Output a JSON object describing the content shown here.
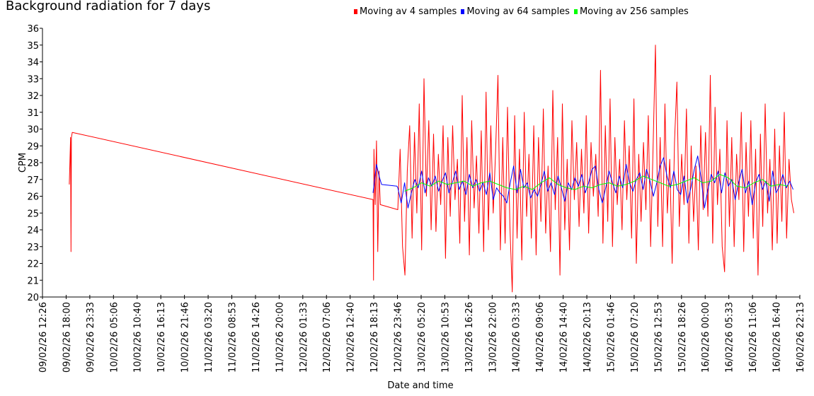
{
  "chart_data": {
    "type": "line",
    "title": "Background radiation for 7 days",
    "xlabel": "Date and time",
    "ylabel": "CPM",
    "ylim": [
      20,
      36
    ],
    "x_unit": "hours since 09/02/26 12:26",
    "xlim": [
      0,
      177.78
    ],
    "x_tick_step_hours": 5.5556,
    "yticks": [
      20,
      21,
      22,
      23,
      24,
      25,
      26,
      27,
      28,
      29,
      30,
      31,
      32,
      33,
      34,
      35,
      36
    ],
    "xtick_labels": [
      "09/02/26 12:26",
      "09/02/26 18:00",
      "09/02/26 23:33",
      "10/02/26 05:06",
      "10/02/26 10:40",
      "10/02/26 16:13",
      "10/02/26 21:46",
      "11/02/26 03:20",
      "11/02/26 08:53",
      "11/02/26 14:26",
      "11/02/26 20:00",
      "12/02/26 01:33",
      "12/02/26 07:06",
      "12/02/26 12:40",
      "12/02/26 18:13",
      "12/02/26 23:46",
      "13/02/26 05:20",
      "13/02/26 10:53",
      "13/02/26 16:26",
      "13/02/26 22:00",
      "14/02/26 03:33",
      "14/02/26 09:06",
      "14/02/26 14:40",
      "14/02/26 20:13",
      "15/02/26 01:46",
      "15/02/26 07:20",
      "15/02/26 12:53",
      "15/02/26 18:26",
      "16/02/26 00:00",
      "16/02/26 05:33",
      "16/02/26 11:06",
      "16/02/26 16:40",
      "16/02/26 22:13"
    ],
    "legend_position": "top",
    "series": [
      {
        "name": "Moving av 4 samples",
        "color": "#ff0000",
        "points": [
          [
            6.3,
            26.7
          ],
          [
            6.6,
            29.5
          ],
          [
            6.7,
            22.7
          ],
          [
            6.8,
            29.5
          ],
          [
            7.0,
            29.8
          ],
          [
            77.6,
            25.8
          ],
          [
            77.7,
            21
          ],
          [
            77.8,
            28.8
          ],
          [
            78.1,
            25.5
          ],
          [
            78.4,
            29.3
          ],
          [
            78.7,
            22.7
          ],
          [
            79.0,
            27.5
          ],
          [
            79.3,
            25.5
          ]
        ],
        "x_start": 83.4,
        "x_step": 0.56,
        "values": [
          25.2,
          28.8,
          23,
          21.3,
          27.5,
          30.2,
          23.5,
          29.8,
          25,
          31.5,
          22.8,
          33,
          26,
          30.5,
          24,
          29.7,
          23.9,
          28.5,
          25.5,
          30.2,
          22.3,
          29.5,
          24.8,
          30.2,
          25.8,
          28.2,
          23.2,
          32,
          24.5,
          29.5,
          22.5,
          30.5,
          25.3,
          28.4,
          23.8,
          29.9,
          22.7,
          32.2,
          24,
          30.2,
          25,
          28.6,
          33.2,
          22.8,
          29.5,
          23.2,
          31.3,
          24.2,
          20.3,
          30.8,
          23.5,
          28.8,
          22.2,
          31,
          24.8,
          28.5,
          23.5,
          30.2,
          22.5,
          29.5,
          24.5,
          31.2,
          23.8,
          27.8,
          22.7,
          32.3,
          25.2,
          29.5,
          21.3,
          31.5,
          24,
          28.2,
          22.8,
          30.5,
          25.8,
          29.2,
          24.2,
          28.8,
          25,
          30.8,
          23.8,
          29.2,
          26,
          28.5,
          24.8,
          33.5,
          23.2,
          30.2,
          24.5,
          31.8,
          23,
          29.5,
          25.5,
          28.2,
          24,
          30.5,
          25.8,
          29,
          23.5,
          31.8,
          22,
          28.5,
          24.5,
          29.2,
          25.2,
          30.8,
          23,
          28.8,
          35,
          24.2,
          29.5,
          23,
          31.5,
          25,
          28.2,
          22,
          29.2,
          32.8,
          24.2,
          28.5,
          25.5,
          31.2,
          23.2,
          29,
          24.5,
          27.8,
          22.8,
          30.2,
          25.2,
          29.8,
          24.8,
          33.2,
          23.2,
          31.3,
          25.5,
          28.8,
          23,
          21.5,
          30.5,
          24.2,
          29.5,
          23,
          28.5,
          25.8,
          31,
          22.7,
          29.2,
          24.8,
          30.5,
          23.5,
          28.8,
          21.3,
          29.7,
          24.2,
          31.5,
          25,
          28.2,
          22.8,
          30,
          23.2,
          29,
          24.5,
          31,
          23.5,
          28.2,
          25.8,
          25
        ]
      },
      {
        "name": "Moving av 64 samples",
        "color": "#0000ff",
        "points": [
          [
            77.6,
            26.2
          ],
          [
            78.4,
            27.9
          ],
          [
            79.0,
            27.2
          ],
          [
            79.6,
            26.7
          ],
          [
            83.2,
            26.6
          ]
        ],
        "x_start": 83.4,
        "x_step": 0.8,
        "values": [
          26.5,
          25.6,
          26.8,
          25.3,
          26.2,
          27,
          26.5,
          27.5,
          26.2,
          27.1,
          26.6,
          27.2,
          26.3,
          26.9,
          27.4,
          26.2,
          26.8,
          27.5,
          26.4,
          26.9,
          26.1,
          27.3,
          26.5,
          27,
          26.3,
          26.8,
          26.1,
          27.4,
          25.8,
          26.5,
          26.2,
          26,
          25.6,
          26.8,
          27.8,
          26.2,
          27.6,
          26.5,
          26.8,
          25.9,
          26.4,
          26,
          26.7,
          27.5,
          26.3,
          26.8,
          26.1,
          27.2,
          26.5,
          25.7,
          26.8,
          26.4,
          27.1,
          26.6,
          27.3,
          26.2,
          26.8,
          27.6,
          27.8,
          26.4,
          25.6,
          26.5,
          27.5,
          26.8,
          26.2,
          27.2,
          26.5,
          27.9,
          26.8,
          26.3,
          27,
          27.4,
          26.4,
          27.6,
          26.9,
          26,
          26.8,
          27.8,
          28.3,
          27.2,
          26.5,
          27.5,
          26.4,
          26.1,
          27.2,
          25.6,
          26.5,
          27.6,
          28.4,
          27.1,
          25.3,
          26.4,
          27.3,
          26.8,
          27.5,
          26.2,
          27.4,
          26.6,
          27,
          25.8,
          26.8,
          27.6,
          26.2,
          26.9,
          25.5,
          26.8,
          27.3,
          26.4,
          26.9,
          25.7,
          27.5,
          26.2,
          26.6,
          27.3,
          26.5,
          26.9,
          26.4
        ]
      },
      {
        "name": "Moving av 256 samples",
        "color": "#00ff00",
        "points": [],
        "x_start": 85,
        "x_step": 2,
        "values": [
          26.3,
          26.5,
          26.8,
          26.6,
          26.9,
          26.7,
          26.8,
          26.9,
          26.6,
          26.8,
          26.9,
          26.7,
          26.5,
          26.4,
          26.6,
          26.4,
          26.8,
          27.1,
          26.7,
          26.5,
          26.4,
          26.6,
          26.5,
          26.7,
          26.8,
          26.6,
          26.7,
          26.9,
          27.2,
          27,
          26.8,
          26.6,
          26.7,
          26.9,
          27.1,
          26.8,
          26.9,
          27.3,
          27.1,
          26.6,
          26.5,
          26.8,
          27,
          26.6,
          26.7,
          26.6
        ]
      }
    ]
  }
}
